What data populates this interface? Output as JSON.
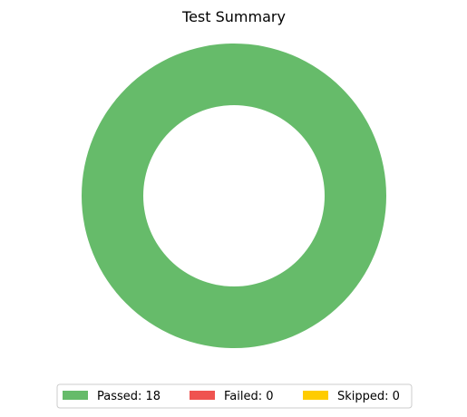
{
  "chart_data": {
    "type": "pie",
    "style": "donut",
    "title": "Test Summary",
    "categories": [
      "Passed",
      "Failed",
      "Skipped"
    ],
    "values": [
      18,
      0,
      0
    ],
    "colors": [
      "#66bb6a",
      "#ef5350",
      "#ffcc00"
    ],
    "legend": {
      "position": "bottom",
      "entries": [
        {
          "label": "Passed: 18",
          "color": "#66bb6a"
        },
        {
          "label": "Failed: 0",
          "color": "#ef5350"
        },
        {
          "label": "Skipped: 0",
          "color": "#ffcc00"
        }
      ]
    }
  }
}
